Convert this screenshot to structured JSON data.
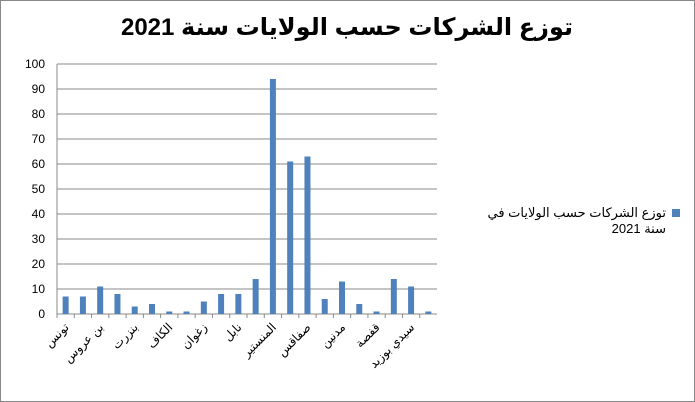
{
  "chart_data": {
    "type": "bar",
    "title": "توزع الشركات حسب الولايات سنة 2021",
    "categories": [
      "تونس",
      null,
      "بن عروس",
      null,
      "بنزرت",
      null,
      "الكاف",
      null,
      "زغوان",
      null,
      "نابل",
      null,
      "المنستير",
      null,
      "صفاقس",
      null,
      "مدنين",
      null,
      "قفصة",
      null,
      "سيدي بوزيد",
      null
    ],
    "series": [
      {
        "name": "توزع الشركات حسب الولايات في سنة 2021",
        "color": "#4f81bd",
        "values": [
          7,
          7,
          11,
          8,
          3,
          4,
          1,
          1,
          5,
          8,
          8,
          14,
          94,
          61,
          63,
          6,
          13,
          4,
          1,
          14,
          11,
          1
        ]
      }
    ],
    "ylim": [
      0,
      100
    ],
    "yticks": [
      0,
      10,
      20,
      30,
      40,
      50,
      60,
      70,
      80,
      90,
      100
    ],
    "grid": true
  }
}
